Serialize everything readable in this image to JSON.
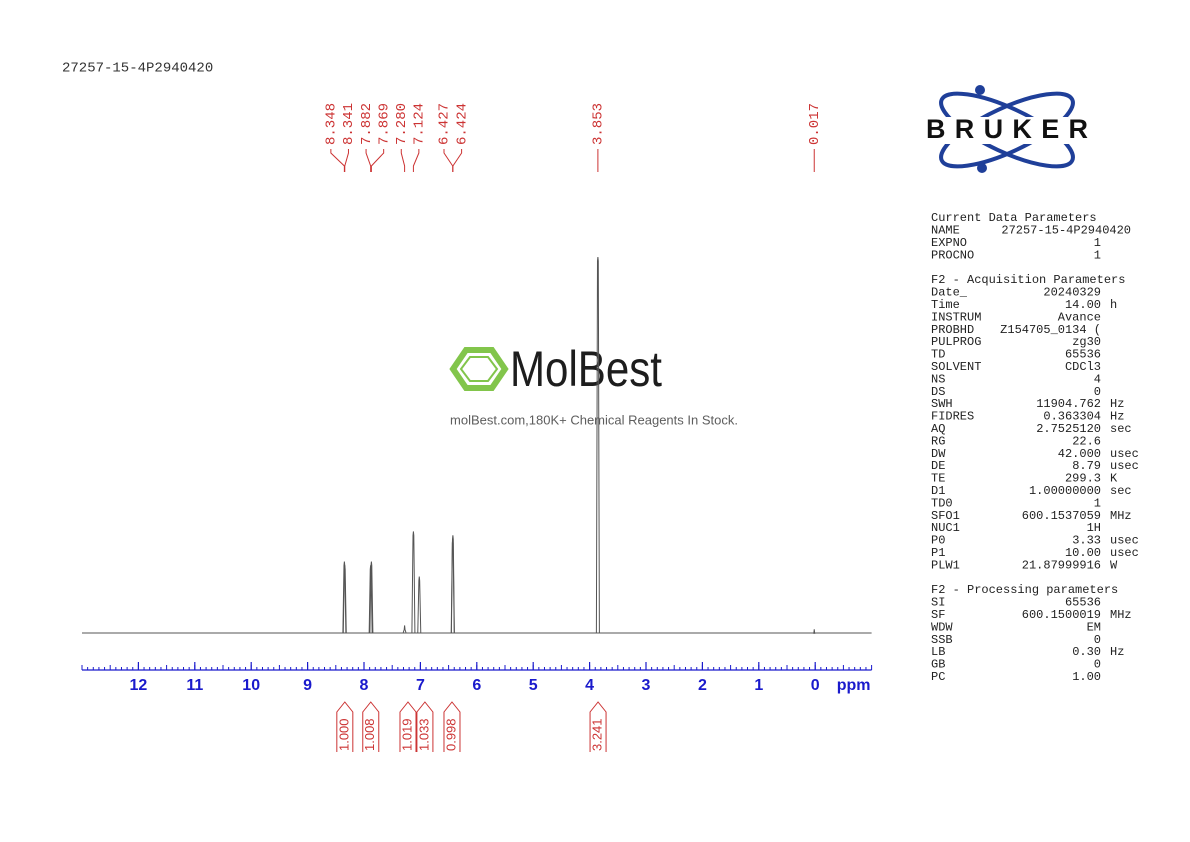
{
  "title": "27257-15-4P2940420",
  "chart_data": {
    "type": "line",
    "x_label": "ppm",
    "xlim": [
      13,
      -1
    ],
    "xticks": [
      12,
      11,
      10,
      9,
      8,
      7,
      6,
      5,
      4,
      3,
      2,
      1,
      0
    ],
    "color": "#555555",
    "label_color": "#cc3333",
    "axis_color": "#1a1acc",
    "peaks": {
      "x": [
        8.348,
        8.341,
        7.882,
        7.869,
        7.28,
        7.124,
        7.02,
        6.427,
        6.424,
        3.853,
        0.017
      ],
      "values": [
        19,
        18,
        18,
        19,
        2,
        27,
        15,
        25,
        26,
        100,
        1
      ],
      "x_labels": [
        "8.348",
        "8.341",
        "7.882",
        "7.869",
        "7.280",
        "7.124",
        null,
        "6.427",
        "6.424",
        "3.853",
        "0.017"
      ]
    },
    "integrals": {
      "x": [
        8.34,
        7.88,
        7.22,
        6.92,
        6.44,
        3.85
      ],
      "values": [
        1.0,
        1.008,
        1.019,
        1.033,
        0.998,
        3.241
      ],
      "value_labels": [
        "1.000",
        "1.008",
        "1.019",
        "1.033",
        "0.998",
        "3.241"
      ]
    }
  },
  "logo": {
    "text": "BRUKER"
  },
  "watermark": {
    "brand": "MolBest",
    "tagline": "molBest.com,180K+ Chemical Reagents In Stock."
  },
  "parameters": [
    {
      "heading": "Current Data Parameters",
      "rows": [
        [
          "NAME",
          "27257-15-4P2940420"
        ],
        [
          "EXPNO",
          "1"
        ],
        [
          "PROCNO",
          "1"
        ]
      ]
    },
    {
      "heading": "F2 - Acquisition Parameters",
      "rows": [
        [
          "Date_",
          "20240329"
        ],
        [
          "Time",
          "14.00",
          "h"
        ],
        [
          "INSTRUM",
          "Avance"
        ],
        [
          "PROBHD",
          "Z154705_0134 ("
        ],
        [
          "PULPROG",
          "zg30"
        ],
        [
          "TD",
          "65536"
        ],
        [
          "SOLVENT",
          "CDCl3"
        ],
        [
          "NS",
          "4"
        ],
        [
          "DS",
          "0"
        ],
        [
          "SWH",
          "11904.762",
          "Hz"
        ],
        [
          "FIDRES",
          "0.363304",
          "Hz"
        ],
        [
          "AQ",
          "2.7525120",
          "sec"
        ],
        [
          "RG",
          "22.6"
        ],
        [
          "DW",
          "42.000",
          "usec"
        ],
        [
          "DE",
          "8.79",
          "usec"
        ],
        [
          "TE",
          "299.3",
          "K"
        ],
        [
          "D1",
          "1.00000000",
          "sec"
        ],
        [
          "TD0",
          "1"
        ],
        [
          "SFO1",
          "600.1537059",
          "MHz"
        ],
        [
          "NUC1",
          "1H"
        ],
        [
          "P0",
          "3.33",
          "usec"
        ],
        [
          "P1",
          "10.00",
          "usec"
        ],
        [
          "PLW1",
          "21.87999916",
          "W"
        ]
      ]
    },
    {
      "heading": "F2 - Processing parameters",
      "rows": [
        [
          "SI",
          "65536"
        ],
        [
          "SF",
          "600.1500019",
          "MHz"
        ],
        [
          "WDW",
          "EM"
        ],
        [
          "SSB",
          "0"
        ],
        [
          "LB",
          "0.30",
          "Hz"
        ],
        [
          "GB",
          "0"
        ],
        [
          "PC",
          "1.00"
        ]
      ]
    }
  ]
}
